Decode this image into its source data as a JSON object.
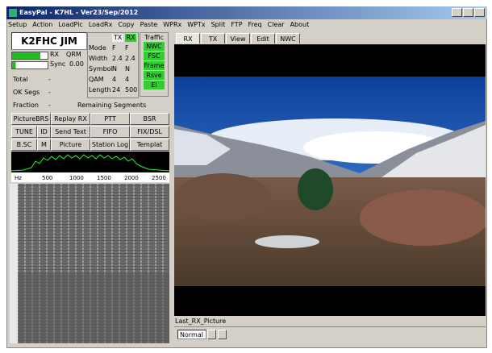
{
  "window": {
    "title": "EasyPal - K7HL - Ver23/Sep/2012"
  },
  "menu": [
    "Setup",
    "Action",
    "LoadPic",
    "LoadRx",
    "Copy",
    "Paste",
    "WPRx",
    "WPTx",
    "Split",
    "FTP",
    "Freq",
    "Clear",
    "About"
  ],
  "status": {
    "callsign": "K2FHC JIM",
    "rx_label": "RX",
    "qrm_label": "QRM",
    "sync_label": "Sync",
    "snr": "0.00",
    "total": {
      "label": "Total",
      "value": "-"
    },
    "ok_segs": {
      "label": "OK Segs",
      "value": "-"
    },
    "fraction": {
      "label": "Fraction",
      "value": "-"
    },
    "remaining": "Remaining Segments"
  },
  "params": {
    "headers": [
      "TX",
      "RX"
    ],
    "rows": [
      [
        "Mode",
        "F",
        "F"
      ],
      [
        "Width",
        "2.4",
        "2.4"
      ],
      [
        "Symbol",
        "N",
        "N"
      ],
      [
        "QAM",
        "4",
        "4"
      ],
      [
        "Length",
        "24",
        "500"
      ]
    ]
  },
  "traffic": {
    "title": "Traffic",
    "items": [
      "NWC",
      "FSC",
      "Frame",
      "Rsve",
      "EI"
    ]
  },
  "buttons": [
    [
      "PictureBRS",
      "Replay RX",
      "PTT",
      "BSR"
    ],
    [
      "TUNE",
      "ID",
      "Send Text",
      "FIFO",
      "FIX/DSL"
    ],
    [
      "B.SC",
      "M",
      "Picture",
      "Station Log",
      "Templat"
    ]
  ],
  "spectrum_scale": [
    "Hz",
    "500",
    "1000",
    "1500",
    "2000",
    "2500"
  ],
  "tabs": [
    "RX",
    "TX",
    "View",
    "Edit",
    "NWC"
  ],
  "picture_name": "Last_RX_Picture",
  "mode_select": "Normal"
}
